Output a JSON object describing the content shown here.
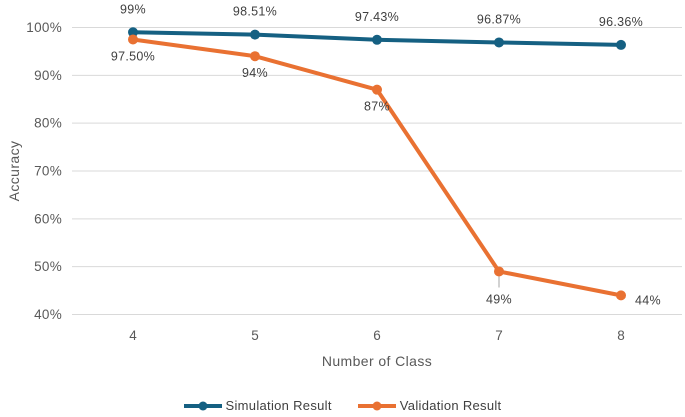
{
  "chart_data": {
    "type": "line",
    "title": "",
    "xlabel": "Number of Class",
    "ylabel": "Accuracy",
    "categories": [
      "4",
      "5",
      "6",
      "7",
      "8"
    ],
    "series": [
      {
        "name": "Simulation Result",
        "color": "#156082",
        "values": [
          99,
          98.51,
          97.43,
          96.87,
          96.36
        ],
        "point_labels": [
          "99%",
          "98.51%",
          "97.43%",
          "96.87%",
          "96.36%"
        ],
        "label_placement": [
          "above",
          "above",
          "above",
          "above",
          "above"
        ]
      },
      {
        "name": "Validation Result",
        "color": "#E97132",
        "values": [
          97.5,
          94,
          87,
          49,
          44
        ],
        "point_labels": [
          "97.50%",
          "94%",
          "87%",
          "49%",
          "44%"
        ],
        "label_placement": [
          "below",
          "below",
          "below",
          "below-leader",
          "right"
        ]
      }
    ],
    "ylim": [
      40,
      100
    ],
    "yticks": [
      40,
      50,
      60,
      70,
      80,
      90,
      100
    ],
    "ytick_labels": [
      "40%",
      "50%",
      "60%",
      "70%",
      "80%",
      "90%",
      "100%"
    ],
    "grid": true,
    "legend_position": "bottom"
  },
  "styles": {
    "background": "#FFFFFF",
    "grid_color": "#D9D9D9",
    "tick_label_color": "#595959",
    "axis_title_color": "#595959",
    "data_label_color": "#404040",
    "legend_text_color": "#404040",
    "leader_line_color": "#A6A6A6"
  }
}
